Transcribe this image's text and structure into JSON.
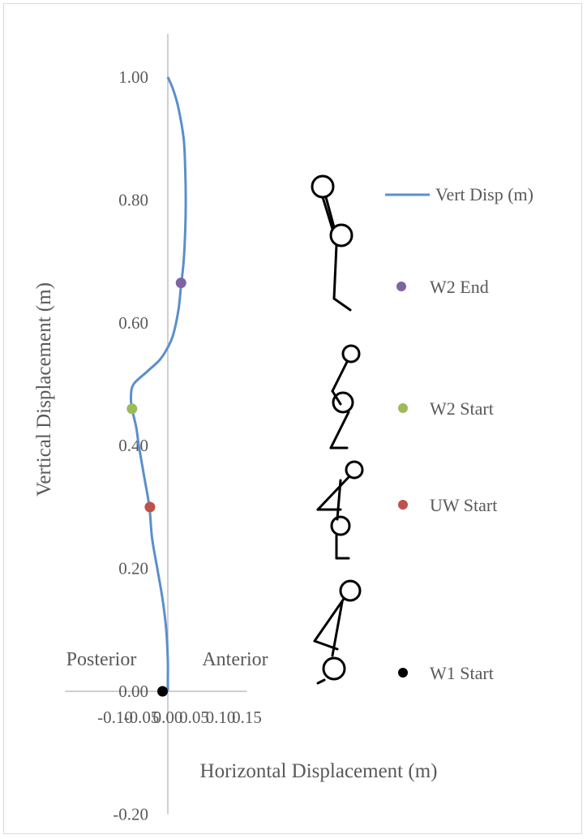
{
  "chart_data": {
    "type": "scatter",
    "title": "",
    "xlabel": "Horizontal Displacement (m)",
    "ylabel": "Vertical Displacement (m)",
    "xlim": [
      -0.1,
      0.15
    ],
    "ylim": [
      -0.2,
      1.0
    ],
    "x_ticks": [
      "-0.10",
      "-0.05",
      "0.00",
      "0.05",
      "0.10",
      "0.15"
    ],
    "y_ticks": [
      "-0.20",
      "0.00",
      "0.20",
      "0.40",
      "0.60",
      "0.80",
      "1.00"
    ],
    "region_labels": {
      "left": "Posterior",
      "right": "Anterior"
    },
    "grid": false,
    "legend_position": "right",
    "series": [
      {
        "name": "Vert Disp (m)",
        "kind": "line",
        "color": "#5b8fca",
        "points": [
          [
            0.0,
            0.0
          ],
          [
            0.0,
            0.02
          ],
          [
            0.0,
            0.05
          ],
          [
            -0.003,
            0.1
          ],
          [
            -0.01,
            0.15
          ],
          [
            -0.02,
            0.2
          ],
          [
            -0.03,
            0.25
          ],
          [
            -0.035,
            0.3
          ],
          [
            -0.045,
            0.35
          ],
          [
            -0.055,
            0.4
          ],
          [
            -0.06,
            0.43
          ],
          [
            -0.068,
            0.46
          ],
          [
            -0.07,
            0.48
          ],
          [
            -0.065,
            0.5
          ],
          [
            -0.04,
            0.52
          ],
          [
            -0.015,
            0.54
          ],
          [
            0.0,
            0.56
          ],
          [
            0.01,
            0.58
          ],
          [
            0.02,
            0.62
          ],
          [
            0.025,
            0.66
          ],
          [
            0.03,
            0.7
          ],
          [
            0.033,
            0.75
          ],
          [
            0.034,
            0.8
          ],
          [
            0.033,
            0.85
          ],
          [
            0.03,
            0.9
          ],
          [
            0.02,
            0.95
          ],
          [
            0.01,
            0.98
          ],
          [
            0.0,
            1.0
          ]
        ]
      },
      {
        "name": "W2 End",
        "kind": "point",
        "color": "#8064a2",
        "points": [
          [
            0.025,
            0.665
          ]
        ]
      },
      {
        "name": "W2 Start",
        "kind": "point",
        "color": "#9bbb59",
        "points": [
          [
            -0.068,
            0.46
          ]
        ]
      },
      {
        "name": "UW Start",
        "kind": "point",
        "color": "#c0504d",
        "points": [
          [
            -0.034,
            0.3
          ]
        ]
      },
      {
        "name": "W1 Start",
        "kind": "point",
        "color": "#000000",
        "points": [
          [
            -0.01,
            0.0
          ]
        ]
      }
    ]
  },
  "colors": {
    "axis": "#bfbfbf",
    "text": "#595959",
    "frame": "#d9d9d9"
  }
}
